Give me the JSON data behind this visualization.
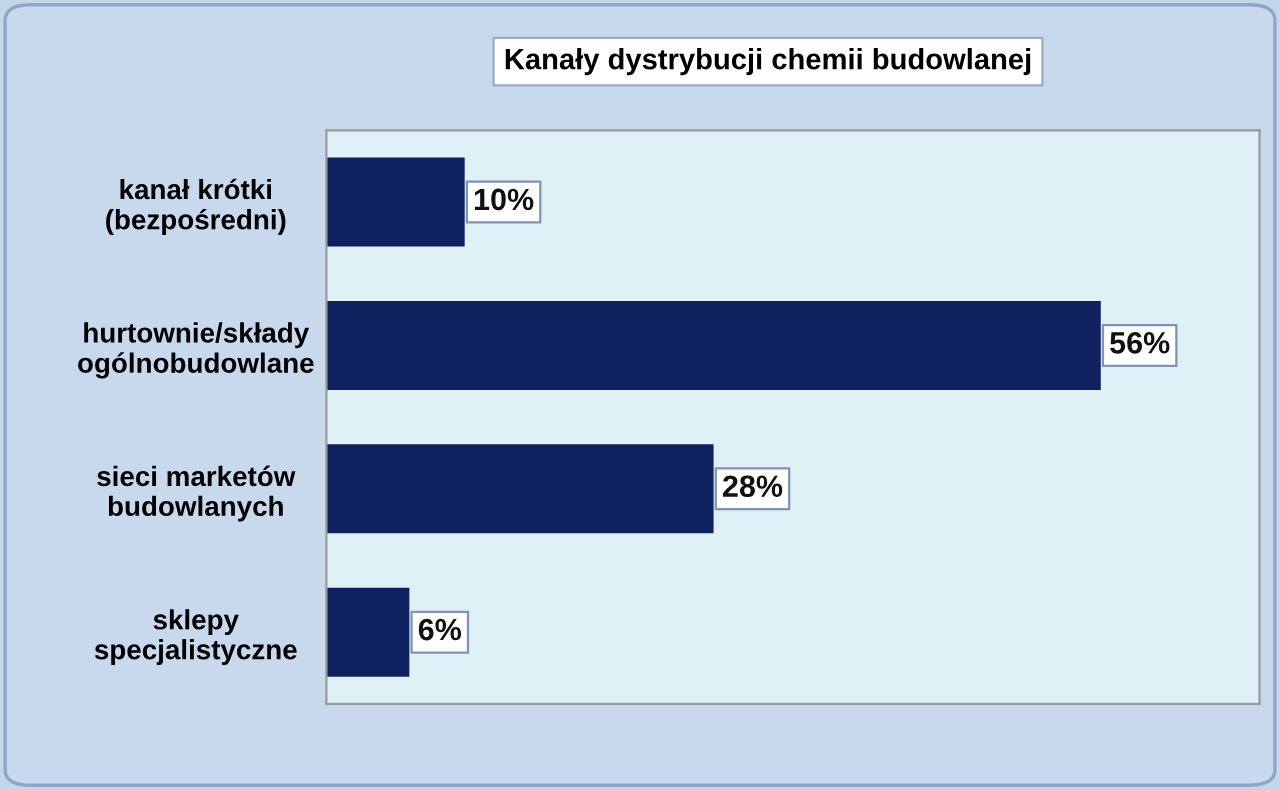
{
  "chart_data": {
    "type": "bar",
    "orientation": "horizontal",
    "title": "Kanały dystrybucji chemii budowlanej",
    "categories": [
      "kanał krótki\n(bezpośredni)",
      "hurtownie/składy\nogólnobudowlane",
      "sieci marketów\nbudowlanych",
      "sklepy\nspecjalistyczne"
    ],
    "values": [
      10,
      56,
      28,
      6
    ],
    "value_labels": [
      "10%",
      "56%",
      "28%",
      "6%"
    ],
    "color": "#0f2260",
    "grid": false,
    "legend": false
  }
}
